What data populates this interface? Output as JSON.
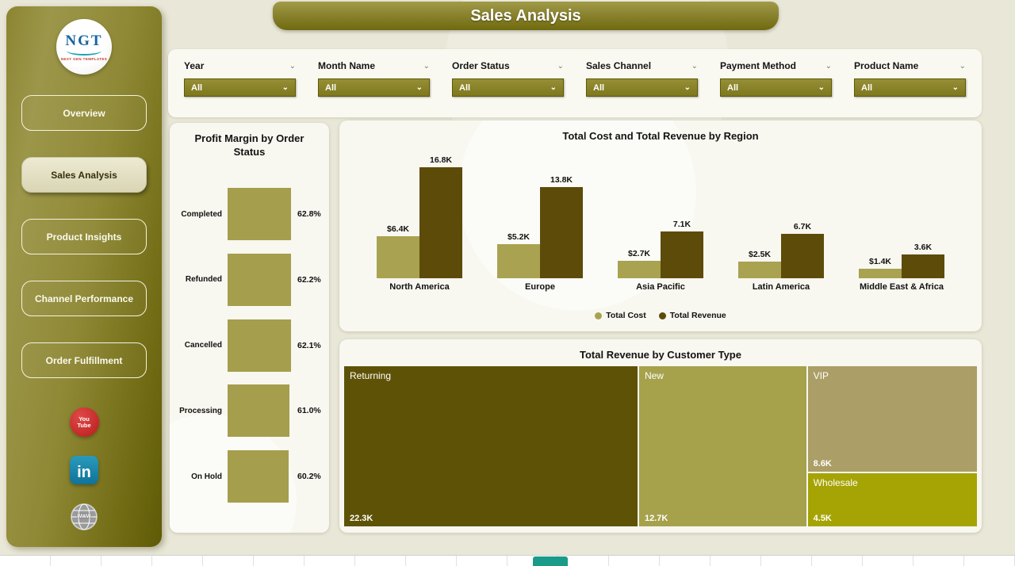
{
  "page_title": "Sales Analysis",
  "sidebar": {
    "logo": {
      "name": "NGT",
      "tagline": "NEXT GEN TEMPLATES"
    },
    "items": [
      {
        "label": "Overview",
        "active": false
      },
      {
        "label": "Sales Analysis",
        "active": true
      },
      {
        "label": "Product Insights",
        "active": false
      },
      {
        "label": "Channel Performance",
        "active": false
      },
      {
        "label": "Order Fulfillment",
        "active": false
      }
    ],
    "social": {
      "youtube_line1": "You",
      "youtube_line2": "Tube",
      "linkedin": "in",
      "web": "WWW"
    }
  },
  "filters": [
    {
      "label": "Year",
      "value": "All"
    },
    {
      "label": "Month Name",
      "value": "All"
    },
    {
      "label": "Order Status",
      "value": "All"
    },
    {
      "label": "Sales Channel",
      "value": "All"
    },
    {
      "label": "Payment Method",
      "value": "All"
    },
    {
      "label": "Product Name",
      "value": "All"
    }
  ],
  "chart_data": [
    {
      "type": "bar",
      "orientation": "horizontal",
      "title": "Profit Margin by Order Status",
      "categories": [
        "Completed",
        "Refunded",
        "Cancelled",
        "Processing",
        "On Hold"
      ],
      "values": [
        62.8,
        62.2,
        62.1,
        61.0,
        60.2
      ],
      "value_labels": [
        "62.8%",
        "62.2%",
        "62.1%",
        "61.0%",
        "60.2%"
      ],
      "xlim": [
        0,
        64
      ],
      "bar_color": "#a59e4d"
    },
    {
      "type": "bar",
      "title": "Total Cost and Total Revenue by Region",
      "categories": [
        "North America",
        "Europe",
        "Asia Pacific",
        "Latin America",
        "Middle East & Africa"
      ],
      "series": [
        {
          "name": "Total Cost",
          "color": "#a9a250",
          "values": [
            6.4,
            5.2,
            2.7,
            2.5,
            1.4
          ],
          "value_labels": [
            "$6.4K",
            "$5.2K",
            "$2.7K",
            "$2.5K",
            "$1.4K"
          ]
        },
        {
          "name": "Total Revenue",
          "color": "#5d4b09",
          "values": [
            16.8,
            13.8,
            7.1,
            6.7,
            3.6
          ],
          "value_labels": [
            "16.8K",
            "13.8K",
            "7.1K",
            "6.7K",
            "3.6K"
          ]
        }
      ],
      "ylim": [
        0,
        18
      ],
      "legend_position": "bottom"
    },
    {
      "type": "treemap",
      "title": "Total Revenue by Customer Type",
      "items": [
        {
          "name": "Returning",
          "value": 22.3,
          "label": "22.3K",
          "color": "#5e5206"
        },
        {
          "name": "New",
          "value": 12.7,
          "label": "12.7K",
          "color": "#a6a24c"
        },
        {
          "name": "VIP",
          "value": 8.6,
          "label": "8.6K",
          "color": "#ab9e66"
        },
        {
          "name": "Wholesale",
          "value": 4.5,
          "label": "4.5K",
          "color": "#a6a405"
        }
      ]
    }
  ],
  "colors": {
    "sidebar_olive": "#8a8433",
    "dark_olive": "#5d4b09",
    "light_olive": "#a9a250",
    "active_tab_teal": "#1a9b8a"
  }
}
